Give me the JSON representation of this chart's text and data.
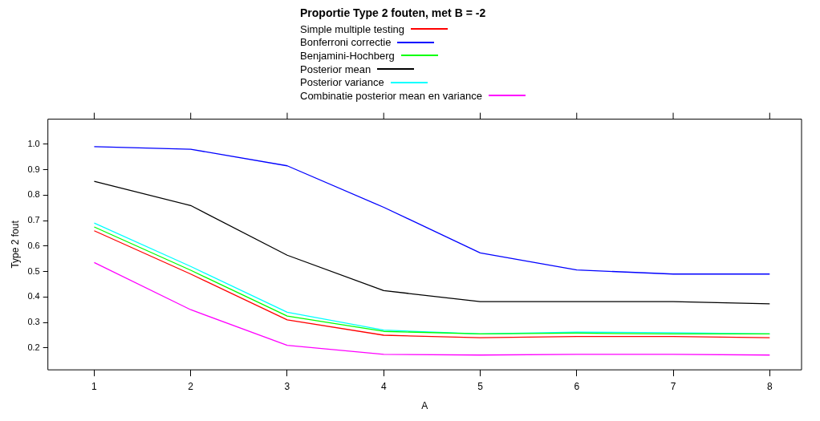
{
  "chart_data": {
    "type": "line",
    "title": "Proportie Type 2 fouten, met B = -2",
    "xlabel": "A",
    "ylabel": "Type 2 fout",
    "x": [
      1,
      2,
      3,
      4,
      5,
      6,
      7,
      8
    ],
    "xlim": [
      0.52,
      8.33
    ],
    "xticks": [
      1,
      2,
      3,
      4,
      5,
      6,
      7,
      8
    ],
    "ylim": [
      0.114,
      1.098
    ],
    "yticks": [
      {
        "value": 0.2,
        "label": "0.2"
      },
      {
        "value": 0.3,
        "label": "0.3"
      },
      {
        "value": 0.4,
        "label": "0.4"
      },
      {
        "value": 0.5,
        "label": "0.5"
      },
      {
        "value": 0.6,
        "label": "0.6"
      },
      {
        "value": 0.7,
        "label": "0.7"
      },
      {
        "value": 0.8,
        "label": "0.8"
      },
      {
        "value": 0.9,
        "label": "0.9"
      },
      {
        "value": 1,
        "label": "1.0"
      }
    ],
    "grid": false,
    "legend": "top",
    "marker": "none",
    "line_style": "solid",
    "series": [
      {
        "name": "Simple multiple testing",
        "color": "#ff0000",
        "values": [
          0.66,
          0.49,
          0.31,
          0.25,
          0.24,
          0.245,
          0.245,
          0.24
        ]
      },
      {
        "name": "Bonferroni correctie",
        "color": "#0000ff",
        "values": [
          0.99,
          0.98,
          0.915,
          0.752,
          0.573,
          0.506,
          0.49,
          0.49
        ]
      },
      {
        "name": "Benjamini-Hochberg",
        "color": "#00ff00",
        "values": [
          0.675,
          0.505,
          0.325,
          0.265,
          0.255,
          0.258,
          0.255,
          0.255
        ]
      },
      {
        "name": "Posterior mean",
        "color": "#000000",
        "values": [
          0.854,
          0.759,
          0.564,
          0.425,
          0.382,
          0.382,
          0.382,
          0.373
        ]
      },
      {
        "name": "Posterior variance",
        "color": "#00ffff",
        "values": [
          0.69,
          0.52,
          0.34,
          0.27,
          0.255,
          0.262,
          0.26,
          0.255
        ]
      },
      {
        "name": "Combinatie posterior mean en variance",
        "color": "#ff00ff",
        "values": [
          0.535,
          0.35,
          0.21,
          0.175,
          0.172,
          0.175,
          0.175,
          0.172
        ]
      }
    ]
  }
}
